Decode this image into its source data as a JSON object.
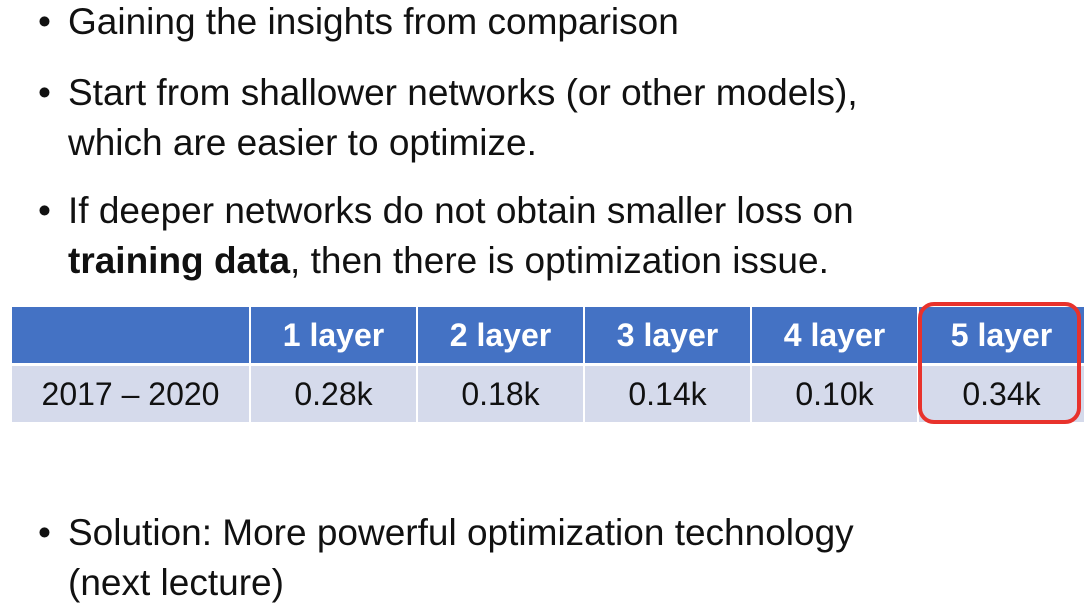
{
  "bullets": [
    {
      "text": "Gaining the insights from comparison"
    },
    {
      "line1": "Start from shallower networks (or other models),",
      "line2": "which are easier to optimize."
    },
    {
      "line1": "If deeper networks do not obtain smaller loss on",
      "bold": "training data",
      "rest": ",  then there is optimization issue."
    },
    {
      "line1": "Solution: More powerful optimization technology",
      "line2": "(next lecture)"
    }
  ],
  "bullet_symbol": "•",
  "table": {
    "headers": [
      "",
      "1 layer",
      "2 layer",
      "3 layer",
      "4 layer",
      "5 layer"
    ],
    "row": {
      "label": "2017 – 2020",
      "values": [
        "0.28k",
        "0.18k",
        "0.14k",
        "0.10k",
        "0.34k"
      ]
    },
    "highlighted_column": "5 layer"
  },
  "colors": {
    "header_bg": "#4472c4",
    "row_bg": "#d5daeb",
    "highlight_border": "#e8322c"
  }
}
